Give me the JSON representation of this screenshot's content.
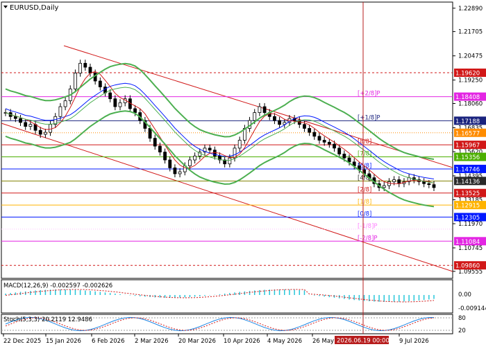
{
  "window_title": "EURUSD,Daily",
  "chart_data": {
    "type": "candlestick",
    "symbol": "EURUSD",
    "timeframe": "Daily",
    "price_axis_labels": [
      "1.22890",
      "1.21705",
      "1.20475",
      "1.19250",
      "1.18060",
      "1.16835",
      "1.15620",
      "1.14395",
      "1.13185",
      "1.11970",
      "1.10745",
      "1.09555"
    ],
    "y_range": [
      1.092,
      1.232
    ],
    "price_levels": [
      {
        "price": 1.1962,
        "label": "1.19620",
        "color": "#d11818",
        "line_color": "#d11818",
        "style": "dashed"
      },
      {
        "price": 1.18408,
        "label": "1.18408",
        "color": "#e326e3",
        "line_color": "#e326e3",
        "style": "solid",
        "murrey": "[+2/8]P"
      },
      {
        "price": 1.17188,
        "label": "1.17188",
        "color": "#1a237e",
        "line_color": "#1a237e",
        "style": "solid",
        "murrey": "[+1/8]P"
      },
      {
        "price": 1.16577,
        "label": "1.16577",
        "color": "#ff8c00",
        "line_color": "#ff8c00",
        "style": "dotted"
      },
      {
        "price": 1.15967,
        "label": "1.15967",
        "color": "#d11818",
        "line_color": "#d11818",
        "style": "solid",
        "murrey": "[8/8]"
      },
      {
        "price": 1.15356,
        "label": "1.15356",
        "color": "#4caf00",
        "line_color": "#4caf00",
        "style": "solid",
        "murrey": "[7/8]"
      },
      {
        "price": 1.14746,
        "label": "1.14746",
        "color": "#0018ff",
        "line_color": "#0018ff",
        "style": "solid",
        "murrey": "[6/8]"
      },
      {
        "price": 1.14136,
        "label": "1.14136",
        "color": "#2a2a2a",
        "line_color": "#808000",
        "style": "solid",
        "murrey": "[4/8]"
      },
      {
        "price": 1.13525,
        "label": "1.13525",
        "color": "#d11818",
        "line_color": "#d11818",
        "style": "solid",
        "murrey": "[2/8]"
      },
      {
        "price": 1.12915,
        "label": "1.12915",
        "color": "#ffb300",
        "line_color": "#ffb300",
        "style": "solid",
        "murrey": "[1/8]"
      },
      {
        "price": 1.12305,
        "label": "1.12305",
        "color": "#0018ff",
        "line_color": "#0018ff",
        "style": "solid",
        "murrey": "[0/8]"
      },
      {
        "price": 1.11694,
        "label": "",
        "color": "#ff80ff",
        "line_color": "#ffc0ff",
        "style": "dotted",
        "murrey": "[-1/8]P"
      },
      {
        "price": 1.11084,
        "label": "1.11084",
        "color": "#e326e3",
        "line_color": "#e326e3",
        "style": "solid",
        "murrey": "[-2/8]P"
      },
      {
        "price": 1.0986,
        "label": "1.09860",
        "color": "#d11818",
        "line_color": "#d11818",
        "style": "dashed"
      }
    ],
    "x_axis_labels": [
      "22 Dec 2025",
      "15 Jan 2026",
      "6 Feb 2026",
      "2 Mar 2026",
      "20 Mar 2026",
      "10 Apr 2026",
      "4 May 2026",
      "26 May 2026",
      "9 Jul 2026"
    ],
    "crosshair_date": "2026.06.19 00:00",
    "close_series": [
      1.176,
      1.174,
      1.173,
      1.171,
      1.169,
      1.17,
      1.167,
      1.165,
      1.166,
      1.17,
      1.174,
      1.179,
      1.182,
      1.188,
      1.196,
      1.201,
      1.199,
      1.196,
      1.192,
      1.189,
      1.186,
      1.183,
      1.179,
      1.181,
      1.183,
      1.178,
      1.176,
      1.172,
      1.168,
      1.163,
      1.159,
      1.156,
      1.152,
      1.148,
      1.145,
      1.146,
      1.149,
      1.152,
      1.154,
      1.156,
      1.158,
      1.157,
      1.154,
      1.152,
      1.15,
      1.153,
      1.158,
      1.162,
      1.168,
      1.172,
      1.176,
      1.179,
      1.176,
      1.174,
      1.172,
      1.17,
      1.171,
      1.173,
      1.172,
      1.17,
      1.168,
      1.166,
      1.164,
      1.162,
      1.161,
      1.16,
      1.158,
      1.155,
      1.153,
      1.151,
      1.149,
      1.147,
      1.145,
      1.143,
      1.14,
      1.138,
      1.139,
      1.141,
      1.142,
      1.14,
      1.141,
      1.143,
      1.142,
      1.141,
      1.14,
      1.1395,
      1.138
    ],
    "macd": {
      "label": "MACD(12,26,9) -0.002597 -0.002626",
      "axis": [
        "0.00",
        "-0.009144"
      ]
    },
    "stoch": {
      "label": "Stoch(5,3,3) 20.2119 12.9486",
      "axis": [
        "80",
        "20"
      ]
    }
  }
}
